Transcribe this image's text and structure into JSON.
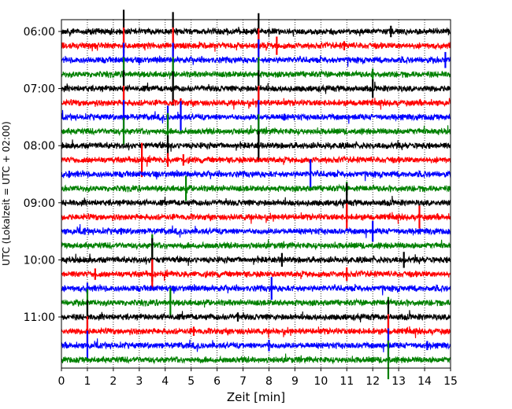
{
  "chart_data": {
    "type": "line",
    "title": "",
    "xlabel": "Zeit  [min]",
    "ylabel": "UTC (Lokalzeit = UTC + 02:00)",
    "xlim": [
      0,
      15
    ],
    "x_ticks": [
      0,
      1,
      2,
      3,
      4,
      5,
      6,
      7,
      8,
      9,
      10,
      11,
      12,
      13,
      14,
      15
    ],
    "grid": "vertical-dotted",
    "legend": "none",
    "colors_cycle": [
      "#000000",
      "#ff0000",
      "#0000ff",
      "#008000"
    ],
    "y_tick_labels": [
      "06:00",
      "07:00",
      "08:00",
      "09:00",
      "10:00",
      "11:00"
    ],
    "rows": [
      {
        "time": "06:00",
        "color": "#000000",
        "spikes": [
          {
            "x": 2.4,
            "a": 1.9
          },
          {
            "x": 4.3,
            "a": 1.7
          },
          {
            "x": 7.6,
            "a": 1.6
          },
          {
            "x": 12.7,
            "a": 0.5
          }
        ]
      },
      {
        "time": "06:15",
        "color": "#ff0000",
        "spikes": [
          {
            "x": 2.4,
            "a": 1.6
          },
          {
            "x": 4.3,
            "a": 1.6
          },
          {
            "x": 7.6,
            "a": 1.5
          },
          {
            "x": 8.3,
            "a": 0.8
          },
          {
            "x": 10.9,
            "a": 0.4
          }
        ]
      },
      {
        "time": "06:30",
        "color": "#0000ff",
        "spikes": [
          {
            "x": 2.4,
            "a": 1.5
          },
          {
            "x": 4.3,
            "a": 1.5
          },
          {
            "x": 7.6,
            "a": 1.8
          },
          {
            "x": 14.8,
            "a": 0.7
          }
        ]
      },
      {
        "time": "06:45",
        "color": "#008000",
        "spikes": [
          {
            "x": 2.4,
            "a": 1.5
          },
          {
            "x": 4.3,
            "a": 1.5
          },
          {
            "x": 7.6,
            "a": 1.5
          },
          {
            "x": 12.0,
            "a": 0.5
          }
        ]
      },
      {
        "time": "07:00",
        "color": "#000000",
        "spikes": [
          {
            "x": 2.4,
            "a": 1.6
          },
          {
            "x": 4.3,
            "a": 1.5
          },
          {
            "x": 7.6,
            "a": 1.6
          },
          {
            "x": 12.0,
            "a": 0.8
          }
        ]
      },
      {
        "time": "07:15",
        "color": "#ff0000",
        "spikes": [
          {
            "x": 2.4,
            "a": 1.5
          },
          {
            "x": 7.6,
            "a": 1.5
          },
          {
            "x": 4.6,
            "a": 0.4
          }
        ]
      },
      {
        "time": "07:30",
        "color": "#0000ff",
        "spikes": [
          {
            "x": 2.4,
            "a": 1.5
          },
          {
            "x": 4.1,
            "a": 1.0
          },
          {
            "x": 4.6,
            "a": 1.4
          },
          {
            "x": 7.6,
            "a": 1.5
          },
          {
            "x": 8.6,
            "a": 0.3
          }
        ]
      },
      {
        "time": "07:45",
        "color": "#008000",
        "spikes": [
          {
            "x": 2.4,
            "a": 1.2
          },
          {
            "x": 4.1,
            "a": 1.6
          },
          {
            "x": 7.6,
            "a": 1.5
          }
        ]
      },
      {
        "time": "08:00",
        "color": "#000000",
        "spikes": [
          {
            "x": 4.1,
            "a": 0.9
          },
          {
            "x": 7.6,
            "a": 1.3
          }
        ]
      },
      {
        "time": "08:15",
        "color": "#ff0000",
        "spikes": [
          {
            "x": 3.1,
            "a": 1.5
          },
          {
            "x": 4.1,
            "a": 0.6
          },
          {
            "x": 4.7,
            "a": 0.5
          }
        ]
      },
      {
        "time": "08:30",
        "color": "#0000ff",
        "spikes": [
          {
            "x": 9.6,
            "a": 1.3
          },
          {
            "x": 0.3,
            "a": 0.3
          }
        ]
      },
      {
        "time": "08:45",
        "color": "#008000",
        "spikes": [
          {
            "x": 4.8,
            "a": 1.1
          },
          {
            "x": 11.0,
            "a": 0.6
          }
        ]
      },
      {
        "time": "09:00",
        "color": "#000000",
        "spikes": [
          {
            "x": 11.0,
            "a": 1.7
          }
        ]
      },
      {
        "time": "09:15",
        "color": "#ff0000",
        "spikes": [
          {
            "x": 11.0,
            "a": 1.2
          },
          {
            "x": 13.8,
            "a": 1.0
          }
        ]
      },
      {
        "time": "09:30",
        "color": "#0000ff",
        "spikes": [
          {
            "x": 12.0,
            "a": 0.9
          },
          {
            "x": 0.9,
            "a": 0.3
          },
          {
            "x": 2.3,
            "a": 0.3
          }
        ]
      },
      {
        "time": "09:45",
        "color": "#008000",
        "spikes": [
          {
            "x": 3.5,
            "a": 1.0
          }
        ]
      },
      {
        "time": "10:00",
        "color": "#000000",
        "spikes": [
          {
            "x": 3.5,
            "a": 1.9
          },
          {
            "x": 8.5,
            "a": 0.6
          },
          {
            "x": 13.2,
            "a": 0.7
          }
        ]
      },
      {
        "time": "10:15",
        "color": "#ff0000",
        "spikes": [
          {
            "x": 3.5,
            "a": 1.3
          },
          {
            "x": 1.3,
            "a": 0.5
          },
          {
            "x": 11.0,
            "a": 0.6
          }
        ]
      },
      {
        "time": "10:30",
        "color": "#0000ff",
        "spikes": [
          {
            "x": 8.1,
            "a": 1.0
          },
          {
            "x": 1.0,
            "a": 0.5
          }
        ]
      },
      {
        "time": "10:45",
        "color": "#008000",
        "spikes": [
          {
            "x": 1.0,
            "a": 1.2
          },
          {
            "x": 4.2,
            "a": 1.3
          },
          {
            "x": 12.6,
            "a": 0.5
          }
        ]
      },
      {
        "time": "11:00",
        "color": "#000000",
        "spikes": [
          {
            "x": 1.0,
            "a": 1.5
          },
          {
            "x": 12.6,
            "a": 1.5
          },
          {
            "x": 6.8,
            "a": 0.4
          }
        ]
      },
      {
        "time": "11:15",
        "color": "#ff0000",
        "spikes": [
          {
            "x": 1.0,
            "a": 1.3
          },
          {
            "x": 12.6,
            "a": 1.5
          },
          {
            "x": 5.1,
            "a": 0.4
          }
        ]
      },
      {
        "time": "11:30",
        "color": "#0000ff",
        "spikes": [
          {
            "x": 1.0,
            "a": 1.3
          },
          {
            "x": 12.6,
            "a": 1.5
          },
          {
            "x": 8.0,
            "a": 0.5
          },
          {
            "x": 14.1,
            "a": 0.4
          }
        ]
      },
      {
        "time": "11:45",
        "color": "#008000",
        "spikes": [
          {
            "x": 12.6,
            "a": 1.7
          }
        ]
      }
    ]
  }
}
